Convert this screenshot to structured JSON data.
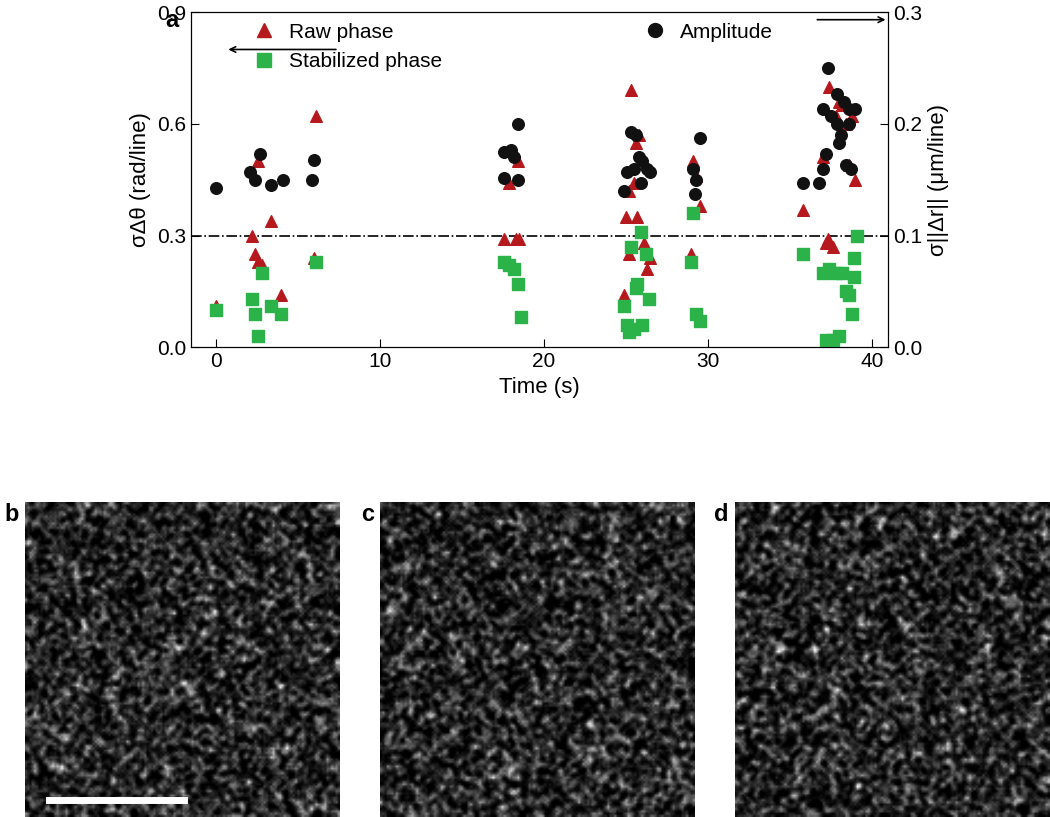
{
  "chart_data": {
    "type": "scatter",
    "panel_label": "a",
    "x_label": "Time (s)",
    "y_label": "σΔθ (rad/line)",
    "y2_label": "σ||Δr|| (μm/line)",
    "xlim": [
      -1.5,
      41
    ],
    "xticks": [
      0,
      10,
      20,
      30,
      40
    ],
    "ylim": [
      0,
      0.9
    ],
    "yticks": [
      {
        "value": 0,
        "label": "0.0"
      },
      0.3,
      0.6,
      0.9
    ],
    "y2lim": [
      0,
      0.3
    ],
    "y2ticks": [
      {
        "value": 0,
        "label": "0.0"
      },
      0.1,
      0.2,
      0.3
    ],
    "reference_line": 0.3,
    "legend": "upper left",
    "series": [
      {
        "name": "Raw phase",
        "color": "#b5191d",
        "marker": "triangle",
        "x": [
          0,
          2.2,
          2.6,
          2.4,
          2.6,
          2.8,
          3.4,
          4.0,
          6.1,
          6.0,
          17.6,
          17.9,
          18.3,
          18.5,
          18.4,
          24.9,
          25.0,
          25.2,
          25.3,
          25.5,
          25.6,
          25.8,
          25.7,
          26.1,
          26.3,
          26.5,
          25.2,
          29.0,
          29.1,
          29.3,
          29.5,
          35.8,
          37.0,
          37.2,
          37.4,
          37.6,
          37.8,
          38.0,
          38.2,
          38.4,
          38.6,
          38.8,
          39.0,
          37.3
        ],
        "values": [
          0.11,
          0.3,
          0.5,
          0.25,
          0.23,
          0.22,
          0.34,
          0.14,
          0.62,
          0.24,
          0.29,
          0.44,
          0.29,
          0.29,
          0.5,
          0.14,
          0.35,
          0.25,
          0.69,
          0.44,
          0.55,
          0.57,
          0.35,
          0.28,
          0.21,
          0.24,
          0.42,
          0.25,
          0.5,
          0.46,
          0.38,
          0.37,
          0.51,
          0.28,
          0.7,
          0.27,
          0.62,
          0.66,
          0.65,
          0.6,
          0.49,
          0.62,
          0.45,
          0.29
        ]
      },
      {
        "name": "Stabilized phase",
        "color": "#2bb34a",
        "marker": "square",
        "x": [
          0,
          2.2,
          2.4,
          2.6,
          2.8,
          3.4,
          4.0,
          6.1,
          17.6,
          17.9,
          18.2,
          18.4,
          18.6,
          24.9,
          25.1,
          25.3,
          25.5,
          25.7,
          25.9,
          26.0,
          26.2,
          26.4,
          25.6,
          25.2,
          29.0,
          29.1,
          29.3,
          29.5,
          35.8,
          37.0,
          37.2,
          37.4,
          37.6,
          37.8,
          38.0,
          38.2,
          38.4,
          38.6,
          38.8,
          38.9,
          39.1,
          38.9
        ],
        "values": [
          0.1,
          0.13,
          0.09,
          0.03,
          0.2,
          0.11,
          0.09,
          0.23,
          0.23,
          0.22,
          0.21,
          0.17,
          0.08,
          0.11,
          0.06,
          0.27,
          0.05,
          0.17,
          0.31,
          0.06,
          0.25,
          0.13,
          0.16,
          0.04,
          0.23,
          0.36,
          0.09,
          0.07,
          0.25,
          0.2,
          0.02,
          0.21,
          0.02,
          0.2,
          0.03,
          0.2,
          0.15,
          0.14,
          0.09,
          0.24,
          0.3,
          0.19
        ]
      },
      {
        "name": "Amplitude",
        "color": "#111111",
        "marker": "circle",
        "axis": "y2",
        "x": [
          0,
          2.1,
          2.7,
          2.4,
          3.4,
          4.1,
          6.0,
          5.9,
          17.6,
          17.6,
          18.2,
          18.4,
          18.4,
          18.0,
          25.3,
          25.6,
          25.1,
          24.9,
          25.5,
          26.0,
          25.8,
          26.3,
          26.5,
          25.9,
          29.1,
          29.3,
          29.2,
          29.5,
          35.8,
          36.8,
          37.0,
          37.2,
          37.0,
          37.3,
          37.5,
          37.9,
          38.3,
          38.6,
          39.0,
          37.9,
          38.0,
          38.4,
          38.7,
          38.1,
          38.6
        ],
        "values": [
          0.143,
          0.157,
          0.173,
          0.15,
          0.145,
          0.15,
          0.168,
          0.15,
          0.152,
          0.175,
          0.17,
          0.15,
          0.2,
          0.177,
          0.193,
          0.19,
          0.157,
          0.14,
          0.16,
          0.167,
          0.17,
          0.16,
          0.157,
          0.147,
          0.16,
          0.15,
          0.137,
          0.187,
          0.147,
          0.147,
          0.16,
          0.173,
          0.213,
          0.25,
          0.207,
          0.227,
          0.22,
          0.213,
          0.213,
          0.2,
          0.183,
          0.163,
          0.16,
          0.19,
          0.2
        ]
      }
    ]
  },
  "images": [
    {
      "label": "b"
    },
    {
      "label": "c"
    },
    {
      "label": "d"
    }
  ]
}
